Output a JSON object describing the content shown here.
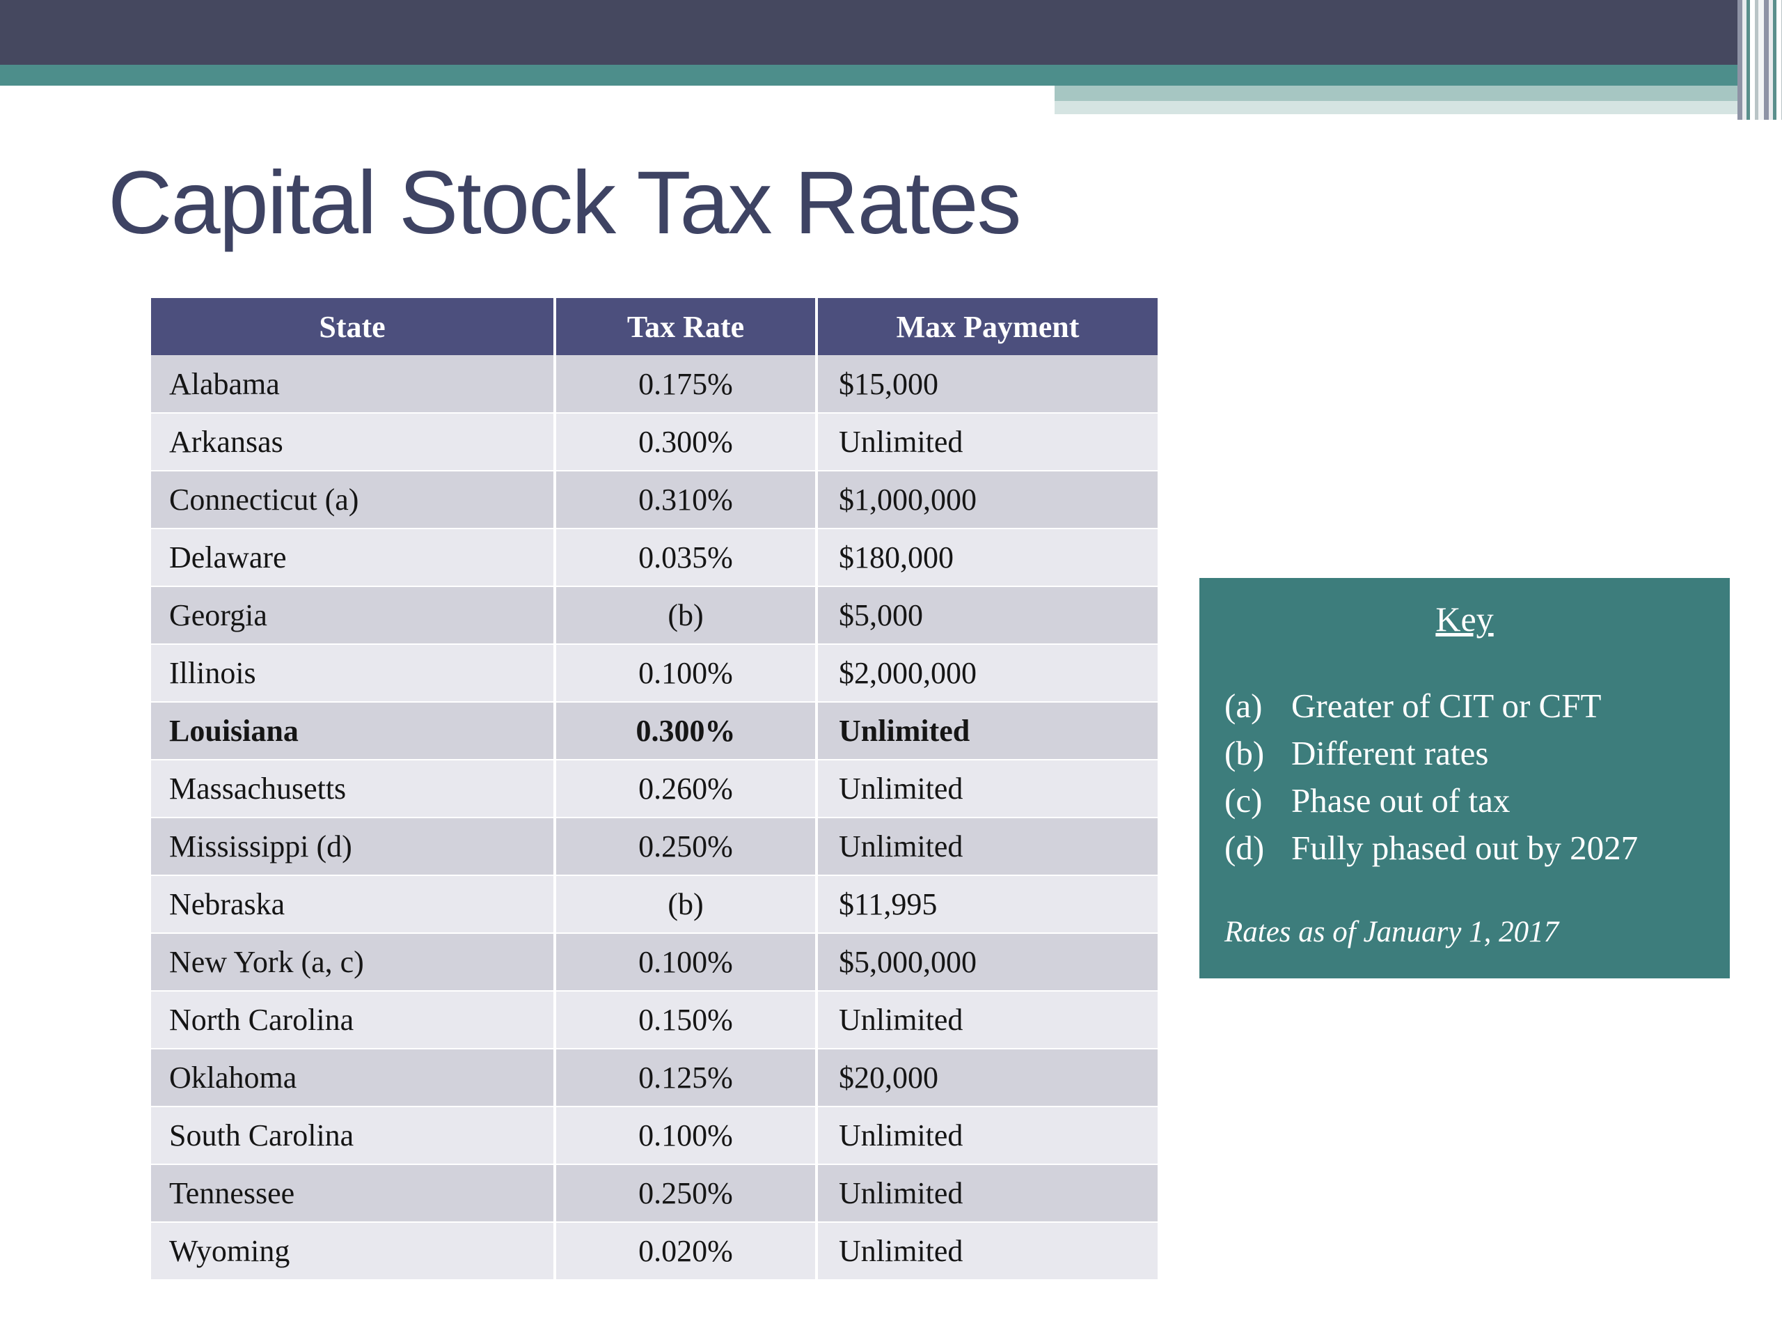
{
  "slide": {
    "title": "Capital Stock Tax Rates"
  },
  "table": {
    "headers": [
      "State",
      "Tax Rate",
      "Max Payment"
    ],
    "rows": [
      {
        "state": "Alabama",
        "tax_rate": "0.175%",
        "max_payment": "$15,000",
        "emphasis": false
      },
      {
        "state": "Arkansas",
        "tax_rate": "0.300%",
        "max_payment": "Unlimited",
        "emphasis": false
      },
      {
        "state": "Connecticut (a)",
        "tax_rate": "0.310%",
        "max_payment": "$1,000,000",
        "emphasis": false
      },
      {
        "state": "Delaware",
        "tax_rate": "0.035%",
        "max_payment": "$180,000",
        "emphasis": false
      },
      {
        "state": "Georgia",
        "tax_rate": "(b)",
        "max_payment": "$5,000",
        "emphasis": false
      },
      {
        "state": "Illinois",
        "tax_rate": "0.100%",
        "max_payment": "$2,000,000",
        "emphasis": false
      },
      {
        "state": "Louisiana",
        "tax_rate": "0.300%",
        "max_payment": "Unlimited",
        "emphasis": true
      },
      {
        "state": "Massachusetts",
        "tax_rate": "0.260%",
        "max_payment": "Unlimited",
        "emphasis": false
      },
      {
        "state": "Mississippi (d)",
        "tax_rate": "0.250%",
        "max_payment": "Unlimited",
        "emphasis": false
      },
      {
        "state": "Nebraska",
        "tax_rate": "(b)",
        "max_payment": "$11,995",
        "emphasis": false
      },
      {
        "state": "New York (a, c)",
        "tax_rate": "0.100%",
        "max_payment": "$5,000,000",
        "emphasis": false
      },
      {
        "state": "North Carolina",
        "tax_rate": "0.150%",
        "max_payment": "Unlimited",
        "emphasis": false
      },
      {
        "state": "Oklahoma",
        "tax_rate": "0.125%",
        "max_payment": "$20,000",
        "emphasis": false
      },
      {
        "state": "South Carolina",
        "tax_rate": "0.100%",
        "max_payment": "Unlimited",
        "emphasis": false
      },
      {
        "state": "Tennessee",
        "tax_rate": "0.250%",
        "max_payment": "Unlimited",
        "emphasis": false
      },
      {
        "state": "Wyoming",
        "tax_rate": "0.020%",
        "max_payment": "Unlimited",
        "emphasis": false
      }
    ]
  },
  "key_box": {
    "title": "Key",
    "items": [
      {
        "label": "(a)",
        "text": "Greater of CIT or CFT"
      },
      {
        "label": "(b)",
        "text": "Different rates"
      },
      {
        "label": "(c)",
        "text": "Phase out of tax"
      },
      {
        "label": "(d)",
        "text": "Fully phased out by 2027"
      }
    ],
    "footnote": "Rates as of January 1, 2017"
  },
  "colors": {
    "top_bar": "#45485f",
    "accent_teal": "#4d8e8b",
    "band_light": "#a6c6c2",
    "band_lighter": "#d5e4e2",
    "table_header_bg": "#4c4f7d",
    "row_odd": "#d2d2db",
    "row_even": "#e8e8ee",
    "key_box_bg": "#3d7d7c",
    "title_color": "#3e4363"
  }
}
